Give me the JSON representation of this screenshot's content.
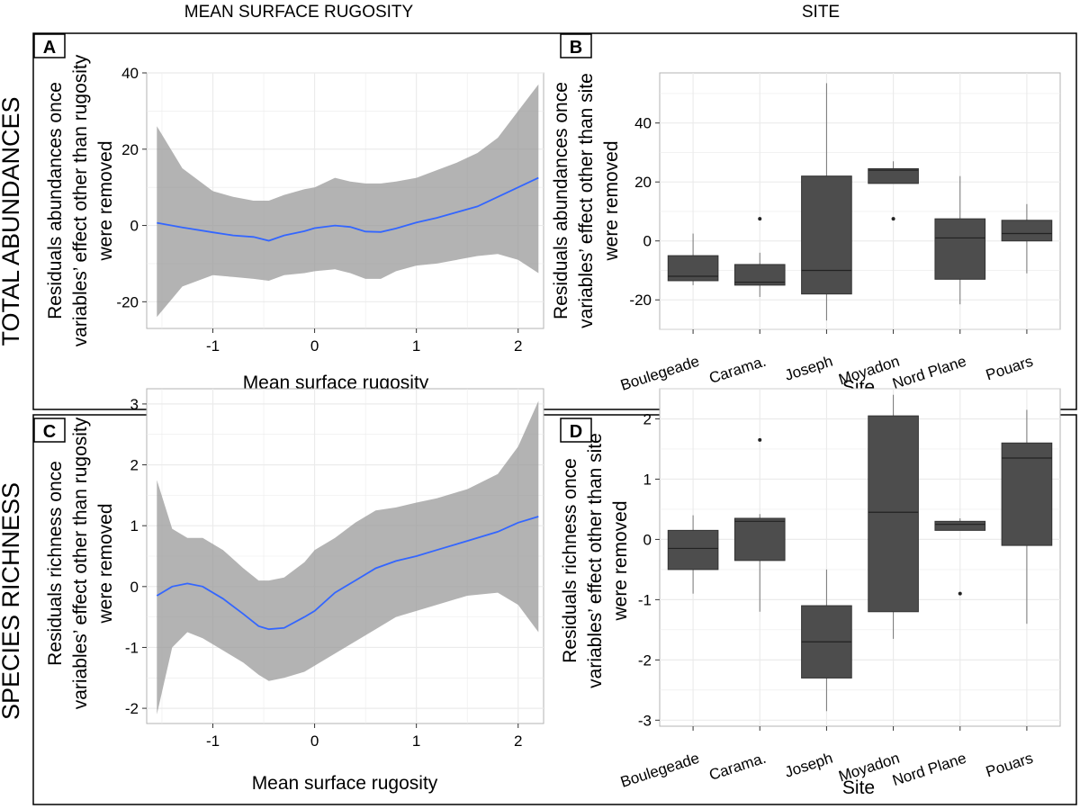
{
  "column_titles": [
    "MEAN SURFACE RUGOSITY",
    "SITE"
  ],
  "row_titles": [
    "TOTAL ABUNDANCES",
    "SPECIES RICHNESS"
  ],
  "chart_data": [
    {
      "panel": "A",
      "type": "line",
      "xlabel": "Mean surface rugosity",
      "ylabel": [
        "Residuals abundances once",
        "variables’ effect other than rugosity",
        "were removed"
      ],
      "xlim": [
        -1.65,
        2.25
      ],
      "ylim": [
        -27,
        40
      ],
      "xticks": [
        -1,
        0,
        1,
        2
      ],
      "yticks": [
        -20,
        0,
        20,
        40
      ],
      "fit": {
        "x": [
          -1.55,
          -1.3,
          -1.0,
          -0.8,
          -0.6,
          -0.45,
          -0.3,
          -0.1,
          0.0,
          0.2,
          0.35,
          0.5,
          0.65,
          0.8,
          1.0,
          1.2,
          1.4,
          1.6,
          1.8,
          2.0,
          2.2
        ],
        "y": [
          0.7,
          -0.5,
          -1.8,
          -2.6,
          -3.0,
          -4.0,
          -2.6,
          -1.5,
          -0.7,
          0.0,
          -0.4,
          -1.6,
          -1.7,
          -0.8,
          0.8,
          2.0,
          3.5,
          5.0,
          7.5,
          10.0,
          12.5
        ],
        "upper": [
          26,
          15,
          9,
          7.5,
          6.5,
          6.5,
          8,
          9.5,
          10,
          12.5,
          11.5,
          11,
          11,
          11.5,
          12.5,
          14.5,
          16.5,
          19,
          23,
          30,
          37
        ],
        "lower": [
          -24,
          -16,
          -13,
          -13.5,
          -14,
          -14.5,
          -13,
          -12.5,
          -12,
          -11.5,
          -12.5,
          -14,
          -14,
          -12,
          -10.5,
          -10,
          -9,
          -8,
          -7.5,
          -9,
          -12.5
        ]
      }
    },
    {
      "panel": "B",
      "type": "box",
      "xlabel": "Site",
      "ylabel": [
        "Residuals abundances once",
        "variables’ effect other than site",
        "were removed"
      ],
      "categories": [
        "Boulegeade",
        "Carama.",
        "Joseph",
        "Moyadon",
        "Nord Plane",
        "Pouars"
      ],
      "ylim": [
        -30,
        57
      ],
      "yticks": [
        -20,
        0,
        20,
        40
      ],
      "boxes": [
        {
          "min": -15,
          "q1": -13.5,
          "median": -12,
          "q3": -5,
          "max": 2.5,
          "outliers": []
        },
        {
          "min": -19,
          "q1": -15,
          "median": -14,
          "q3": -8,
          "max": -4,
          "outliers": [
            7.5
          ]
        },
        {
          "min": -27,
          "q1": -18,
          "median": -10,
          "q3": 22,
          "max": 53.5,
          "outliers": []
        },
        {
          "min": 19.5,
          "q1": 19.5,
          "median": 24,
          "q3": 24.5,
          "max": 27,
          "outliers": [
            7.5
          ]
        },
        {
          "min": -21.5,
          "q1": -13,
          "median": 1,
          "q3": 7.5,
          "max": 22,
          "outliers": []
        },
        {
          "min": -11,
          "q1": 0,
          "median": 2.5,
          "q3": 7,
          "max": 12.5,
          "outliers": []
        }
      ]
    },
    {
      "panel": "C",
      "type": "line",
      "xlabel": "Mean surface rugosity",
      "ylabel": [
        "Residuals richness once",
        "variables’ effect other than rugosity",
        "were removed"
      ],
      "xlim": [
        -1.65,
        2.25
      ],
      "ylim": [
        -2.25,
        3.25
      ],
      "xticks": [
        -1,
        0,
        1,
        2
      ],
      "yticks": [
        -2,
        -1,
        0,
        1,
        2,
        3
      ],
      "fit": {
        "x": [
          -1.55,
          -1.4,
          -1.25,
          -1.1,
          -0.9,
          -0.7,
          -0.55,
          -0.45,
          -0.3,
          -0.1,
          0.0,
          0.2,
          0.4,
          0.6,
          0.8,
          1.0,
          1.2,
          1.5,
          1.8,
          2.0,
          2.2
        ],
        "y": [
          -0.15,
          0.0,
          0.05,
          0.0,
          -0.2,
          -0.45,
          -0.65,
          -0.7,
          -0.68,
          -0.5,
          -0.4,
          -0.1,
          0.1,
          0.3,
          0.42,
          0.5,
          0.6,
          0.75,
          0.9,
          1.05,
          1.15
        ],
        "upper": [
          1.75,
          0.95,
          0.8,
          0.8,
          0.6,
          0.3,
          0.1,
          0.1,
          0.15,
          0.4,
          0.6,
          0.8,
          1.05,
          1.25,
          1.3,
          1.38,
          1.45,
          1.6,
          1.85,
          2.3,
          3.05
        ],
        "lower": [
          -2.1,
          -1.0,
          -0.75,
          -0.85,
          -1.05,
          -1.25,
          -1.45,
          -1.55,
          -1.5,
          -1.4,
          -1.3,
          -1.1,
          -0.9,
          -0.7,
          -0.5,
          -0.4,
          -0.3,
          -0.15,
          -0.1,
          -0.3,
          -0.75
        ]
      }
    },
    {
      "panel": "D",
      "type": "box",
      "xlabel": "Site",
      "ylabel": [
        "Residuals richness once",
        "variables’ effect other than site",
        "were removed"
      ],
      "categories": [
        "Boulegeade",
        "Carama.",
        "Joseph",
        "Moyadon",
        "Nord Plane",
        "Pouars"
      ],
      "ylim": [
        -3.1,
        2.5
      ],
      "yticks": [
        -3,
        -2,
        -1,
        0,
        1,
        2
      ],
      "boxes": [
        {
          "min": -0.9,
          "q1": -0.5,
          "median": -0.15,
          "q3": 0.15,
          "max": 0.4,
          "outliers": []
        },
        {
          "min": -1.2,
          "q1": -0.35,
          "median": 0.3,
          "q3": 0.35,
          "max": 0.42,
          "outliers": [
            1.65
          ]
        },
        {
          "min": -2.85,
          "q1": -2.3,
          "median": -1.7,
          "q3": -1.1,
          "max": -0.5,
          "outliers": []
        },
        {
          "min": -1.65,
          "q1": -1.2,
          "median": 0.45,
          "q3": 2.05,
          "max": 2.4,
          "outliers": []
        },
        {
          "min": 0.15,
          "q1": 0.15,
          "median": 0.25,
          "q3": 0.3,
          "max": 0.35,
          "outliers": [
            -0.9
          ]
        },
        {
          "min": -1.4,
          "q1": -0.1,
          "median": 1.35,
          "q3": 1.6,
          "max": 2.15,
          "outliers": []
        }
      ]
    }
  ]
}
